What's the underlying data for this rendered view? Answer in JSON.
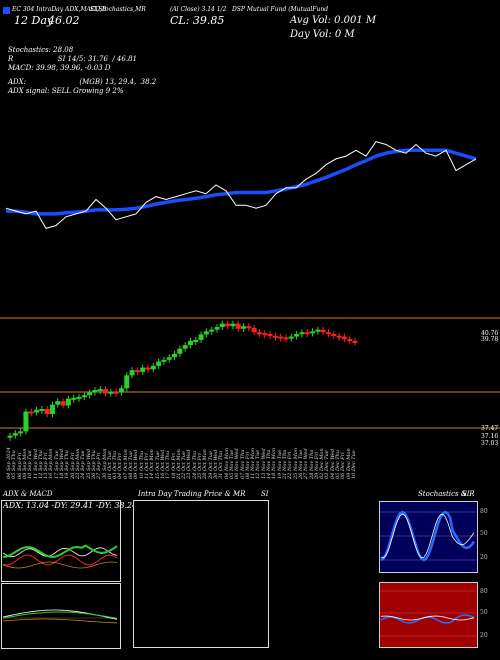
{
  "header": {
    "symbol_line": "DSP Mutual Fund (MutualFund",
    "label_line": "EC 304 IntraDay ADX,MACD,B",
    "label_line2": "SI,Stochastics,MR",
    "cl_line": "CL: 39.85",
    "close_prefix": "(Al Close) 3.14 1/2",
    "avg_vol": "Avg Vol: 0.001 M",
    "day_vol": "Day Vol: 0   M",
    "day_prefix": "12 Day",
    "day_value": "46.02",
    "stoch_label": "Stochastics: 28.08",
    "rsi_label": "R                    SI 14/5: 31.76  / 46.81",
    "macd_label": "MACD: 39.98,  39.96,  -0.03 D",
    "adx_label": "ADX:                        (MGB) 13, 29.4,  38.2",
    "signal_label": "ADX  signal: SELL Growing 9 2%"
  },
  "price_axis": {
    "top_label_a": "40.76",
    "top_label_b": "39.78",
    "bottom_label_a": "37.47",
    "bottom_label_b": "37.16",
    "bottom_label_c": "37.03"
  },
  "colors": {
    "ma_line": "#1a4dff",
    "up_candle": "#2bd12b",
    "down_candle": "#ff2020",
    "orange_line": "#c8821e",
    "rsi_band": "#a00000",
    "stoch_band": "#00005a"
  },
  "chart_data": [
    {
      "type": "line",
      "name": "price-and-moving-average",
      "series": [
        {
          "values": [
            38.55,
            38.5,
            38.45,
            38.5,
            38.2,
            38.25,
            38.4,
            38.45,
            38.5,
            38.7,
            38.55,
            38.35,
            38.4,
            38.45,
            38.65,
            38.75,
            38.7,
            38.75,
            38.8,
            38.85,
            38.8,
            38.95,
            38.85,
            38.6,
            38.6,
            38.55,
            38.6,
            38.8,
            38.9,
            38.9,
            39.05,
            39.15,
            39.3,
            39.4,
            39.45,
            39.55,
            39.45,
            39.7,
            39.65,
            39.55,
            39.5,
            39.65,
            39.5,
            39.45,
            39.55,
            39.2,
            39.3,
            39.4
          ]
        },
        {
          "values": [
            38.5,
            38.5,
            38.48,
            38.45,
            38.45,
            38.45,
            38.47,
            38.48,
            38.5,
            38.52,
            38.52,
            38.52,
            38.53,
            38.55,
            38.58,
            38.62,
            38.65,
            38.68,
            38.7,
            38.72,
            38.75,
            38.78,
            38.8,
            38.82,
            38.82,
            38.82,
            38.82,
            38.85,
            38.88,
            38.92,
            38.96,
            39.02,
            39.08,
            39.15,
            39.22,
            39.3,
            39.37,
            39.45,
            39.5,
            39.53,
            39.55,
            39.55,
            39.55,
            39.55,
            39.55,
            39.5,
            39.45,
            39.4
          ]
        }
      ]
    },
    {
      "type": "bar",
      "name": "candlesticks",
      "categories": [
        "04 Sep 2024",
        "05 Sep Thu",
        "06 Sep Fri",
        "09 Sep Mon",
        "10 Sep Tue",
        "11 Sep Wed",
        "12 Sep Thu",
        "13 Sep Fri",
        "16 Sep Mon",
        "17 Sep Tue",
        "18 Sep Wed",
        "19 Sep Thu",
        "20 Sep Fri",
        "23 Sep Mon",
        "24 Sep Tue",
        "25 Sep Wed",
        "26 Sep Thu",
        "27 Sep Fri",
        "30 Sep Mon",
        "01 Oct Tue",
        "03 Oct Thu",
        "04 Oct Fri",
        "07 Oct Mon",
        "08 Oct Tue",
        "09 Oct Wed",
        "10 Oct Thu",
        "11 Oct Fri",
        "14 Oct Mon",
        "15 Oct Tue",
        "16 Oct Wed",
        "17 Oct Thu",
        "18 Oct Fri",
        "21 Oct Mon",
        "22 Oct Tue",
        "23 Oct Wed",
        "24 Oct Thu",
        "25 Oct Fri",
        "28 Oct Mon",
        "29 Oct Tue",
        "30 Oct Wed",
        "31 Oct Thu",
        "04 Nov Mon",
        "05 Nov Tue",
        "06 Nov Wed",
        "07 Nov Thu",
        "08 Nov Fri",
        "11 Nov Mon",
        "12 Nov Tue",
        "13 Nov Wed",
        "14 Nov Thu",
        "18 Nov Mon",
        "19 Nov Tue",
        "21 Nov Thu",
        "22 Nov Fri",
        "25 Nov Mon",
        "26 Nov Tue",
        "27 Nov Wed",
        "28 Nov Thu",
        "29 Nov Fri",
        "02 Dec Mon",
        "03 Dec Tue",
        "04 Dec Wed",
        "05 Dec Thu",
        "06 Dec Fri",
        "09 Dec Mon",
        "10 Dec Tue"
      ],
      "series": [
        {
          "values": [
            37.2,
            37.26,
            37.3,
            37.76,
            37.74,
            37.8,
            37.82,
            37.7,
            37.92,
            38.0,
            37.9,
            38.06,
            38.08,
            38.1,
            38.14,
            38.2,
            38.26,
            38.28,
            38.18,
            38.22,
            38.2,
            38.3,
            38.6,
            38.72,
            38.68,
            38.78,
            38.74,
            38.82,
            38.92,
            38.96,
            39.02,
            39.1,
            39.22,
            39.3,
            39.4,
            39.42,
            39.55,
            39.62,
            39.66,
            39.72,
            39.8,
            39.74,
            39.8,
            39.68,
            39.74,
            39.7,
            39.6,
            39.58,
            39.56,
            39.52,
            39.5,
            39.48,
            39.46,
            39.5,
            39.56,
            39.6,
            39.58,
            39.62,
            39.66,
            39.6,
            39.56,
            39.52,
            39.5,
            39.44,
            39.4,
            39.38
          ]
        }
      ]
    }
  ],
  "dates": [
    "04 Sep 2024",
    "05 Sep Thu",
    "06 Sep Fri",
    "09 Sep Mon",
    "10 Sep Tue",
    "11 Sep Wed",
    "12 Sep Thu",
    "13 Sep Fri",
    "16 Sep Mon",
    "17 Sep Tue",
    "18 Sep Wed",
    "19 Sep Thu",
    "20 Sep Fri",
    "23 Sep Mon",
    "24 Sep Tue",
    "25 Sep Wed",
    "26 Sep Thu",
    "27 Sep Fri",
    "30 Sep Mon",
    "01 Oct Tue",
    "03 Oct Thu",
    "04 Oct Fri",
    "07 Oct Mon",
    "08 Oct Tue",
    "09 Oct Wed",
    "10 Oct Thu",
    "11 Oct Fri",
    "14 Oct Mon",
    "15 Oct Tue",
    "16 Oct Wed",
    "17 Oct Thu",
    "18 Oct Fri",
    "21 Oct Mon",
    "22 Oct Tue",
    "23 Oct Wed",
    "24 Oct Thu",
    "25 Oct Fri",
    "28 Oct Mon",
    "29 Oct Tue",
    "30 Oct Wed",
    "31 Oct Thu",
    "04 Nov Mon",
    "05 Nov Tue",
    "06 Nov Wed",
    "07 Nov Thu",
    "08 Nov Fri",
    "11 Nov Mon",
    "12 Nov Tue",
    "13 Nov Wed",
    "14 Nov Thu",
    "18 Nov Mon",
    "19 Nov Tue",
    "21 Nov Thu",
    "22 Nov Fri",
    "25 Nov Mon",
    "26 Nov Tue",
    "27 Nov Wed",
    "28 Nov Thu",
    "29 Nov Fri",
    "02 Dec Mon",
    "03 Dec Tue",
    "04 Dec Wed",
    "05 Dec Thu",
    "06 Dec Fri",
    "09 Dec Mon",
    "10 Dec Tue"
  ],
  "bottom": {
    "adx_title": "ADX  & MACD",
    "adx_values": "ADX: 13.04  -DY: 29.41 -DY: 38.24",
    "intraday_title": "Intra  Day Trading Price  & MR",
    "intraday_suffix": "SI",
    "stoch_title": "Stochastics & R",
    "stoch_suffix": "SI",
    "stoch_ticks": [
      "80",
      "50",
      "20"
    ],
    "rsi_ticks": [
      "80",
      "50",
      "20"
    ],
    "stoch_end_label": "28.08",
    "rsi_end_label": "31.76"
  }
}
